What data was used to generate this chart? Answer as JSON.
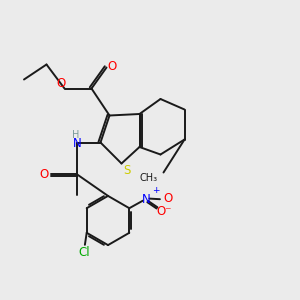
{
  "background_color": "#ebebeb",
  "atom_colors": {
    "C": "#1a1a1a",
    "H": "#7a9a9a",
    "N": "#0000ff",
    "O": "#ff0000",
    "S": "#cccc00",
    "Cl": "#00aa00"
  },
  "figsize": [
    3.0,
    3.0
  ],
  "dpi": 100
}
